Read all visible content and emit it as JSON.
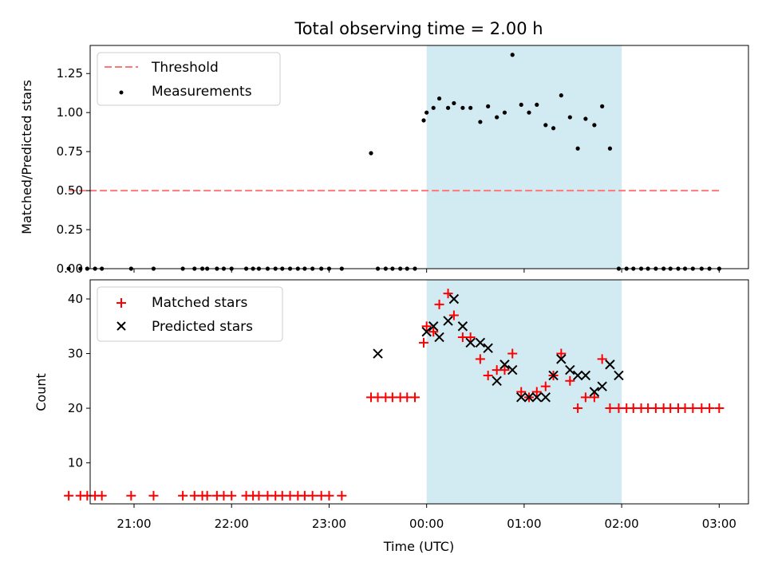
{
  "chart_data": {
    "title": "Total observing time = 2.00 h",
    "xlabel": "Time (UTC)",
    "x_ticks": [
      "21:00",
      "22:00",
      "23:00",
      "00:00",
      "01:00",
      "02:00",
      "03:00"
    ],
    "x_tick_hours": [
      21,
      22,
      23,
      24,
      25,
      26,
      27
    ],
    "xlim_hours": [
      20.55,
      27.3
    ],
    "shaded_span_hours": [
      24.0,
      26.0
    ],
    "colors": {
      "shade": "#add8e6",
      "threshold": "#ff7777",
      "matched": "#ff0000",
      "predicted": "#000000",
      "measure": "#000000"
    },
    "panels": [
      {
        "type": "scatter",
        "ylabel": "Matched/Predicted stars",
        "ylim": [
          0,
          1.43
        ],
        "y_ticks": [
          0.0,
          0.25,
          0.5,
          0.75,
          1.0,
          1.25
        ],
        "y_tick_labels": [
          "0.00",
          "0.25",
          "0.50",
          "0.75",
          "1.00",
          "1.25"
        ],
        "legend": "top-left",
        "threshold": {
          "name": "Threshold",
          "y": 0.5,
          "x_range": [
            20.33,
            27.0
          ]
        },
        "series": [
          {
            "name": "Measurements",
            "x": [
              20.33,
              20.45,
              20.52,
              20.6,
              20.67,
              20.97,
              21.2,
              21.5,
              21.62,
              21.7,
              21.75,
              21.85,
              21.92,
              22.0,
              22.15,
              22.22,
              22.28,
              22.37,
              22.45,
              22.52,
              22.6,
              22.68,
              22.75,
              22.83,
              22.92,
              23.0,
              23.13,
              23.43,
              23.5,
              23.58,
              23.65,
              23.73,
              23.8,
              23.88,
              23.97,
              24.0,
              24.07,
              24.13,
              24.22,
              24.28,
              24.37,
              24.45,
              24.55,
              24.63,
              24.72,
              24.8,
              24.88,
              24.97,
              25.05,
              25.13,
              25.22,
              25.3,
              25.38,
              25.47,
              25.55,
              25.63,
              25.72,
              25.8,
              25.88,
              25.97,
              26.05,
              26.12,
              26.2,
              26.27,
              26.35,
              26.43,
              26.5,
              26.58,
              26.65,
              26.73,
              26.82,
              26.9,
              27.0
            ],
            "y": [
              0,
              0,
              0,
              0,
              0,
              0,
              0,
              0,
              0,
              0,
              0,
              0,
              0,
              0,
              0,
              0,
              0,
              0,
              0,
              0,
              0,
              0,
              0,
              0,
              0,
              0,
              0,
              0.74,
              0,
              0,
              0,
              0,
              0,
              0,
              0.95,
              1.0,
              1.03,
              1.09,
              1.03,
              1.06,
              1.03,
              1.03,
              0.94,
              1.04,
              0.97,
              1.0,
              1.37,
              1.05,
              1.0,
              1.05,
              0.92,
              0.9,
              1.11,
              0.97,
              0.77,
              0.96,
              0.92,
              1.04,
              0.77,
              0,
              0,
              0,
              0,
              0,
              0,
              0,
              0,
              0,
              0,
              0,
              0,
              0,
              0
            ]
          }
        ]
      },
      {
        "type": "scatter",
        "ylabel": "Count",
        "ylim": [
          2.5,
          43.5
        ],
        "y_ticks": [
          10,
          20,
          30,
          40
        ],
        "y_tick_labels": [
          "10",
          "20",
          "30",
          "40"
        ],
        "legend": "top-left",
        "series": [
          {
            "name": "Matched stars",
            "marker": "+",
            "x": [
              20.33,
              20.45,
              20.52,
              20.6,
              20.67,
              20.97,
              21.2,
              21.5,
              21.62,
              21.7,
              21.75,
              21.85,
              21.92,
              22.0,
              22.15,
              22.22,
              22.28,
              22.37,
              22.45,
              22.52,
              22.6,
              22.68,
              22.75,
              22.83,
              22.92,
              23.0,
              23.13,
              23.43,
              23.5,
              23.58,
              23.65,
              23.73,
              23.8,
              23.88,
              23.97,
              24.0,
              24.07,
              24.13,
              24.22,
              24.28,
              24.37,
              24.45,
              24.55,
              24.63,
              24.72,
              24.8,
              24.88,
              24.97,
              25.05,
              25.13,
              25.22,
              25.3,
              25.38,
              25.47,
              25.55,
              25.63,
              25.72,
              25.8,
              25.88,
              25.97,
              26.05,
              26.12,
              26.2,
              26.27,
              26.35,
              26.43,
              26.5,
              26.58,
              26.65,
              26.73,
              26.82,
              26.9,
              27.0
            ],
            "y": [
              4,
              4,
              4,
              4,
              4,
              4,
              4,
              4,
              4,
              4,
              4,
              4,
              4,
              4,
              4,
              4,
              4,
              4,
              4,
              4,
              4,
              4,
              4,
              4,
              4,
              4,
              4,
              22,
              22,
              22,
              22,
              22,
              22,
              22,
              32,
              35,
              34,
              39,
              41,
              37,
              33,
              33,
              29,
              26,
              27,
              27,
              30,
              23,
              22,
              23,
              24,
              26,
              30,
              25,
              20,
              22,
              22,
              29,
              20,
              20,
              20,
              20,
              20,
              20,
              20,
              20,
              20,
              20,
              20,
              20,
              20,
              20,
              20
            ]
          },
          {
            "name": "Predicted stars",
            "marker": "x",
            "x": [
              23.5,
              24.0,
              24.07,
              24.13,
              24.22,
              24.28,
              24.37,
              24.45,
              24.55,
              24.63,
              24.72,
              24.8,
              24.88,
              24.97,
              25.05,
              25.13,
              25.22,
              25.3,
              25.38,
              25.47,
              25.55,
              25.63,
              25.72,
              25.8,
              25.88,
              25.97
            ],
            "y": [
              30,
              34,
              35,
              33,
              36,
              40,
              35,
              32,
              32,
              31,
              25,
              28,
              27,
              22,
              22,
              22,
              22,
              26,
              29,
              27,
              26,
              26,
              23,
              24,
              28,
              26
            ]
          }
        ]
      }
    ]
  }
}
